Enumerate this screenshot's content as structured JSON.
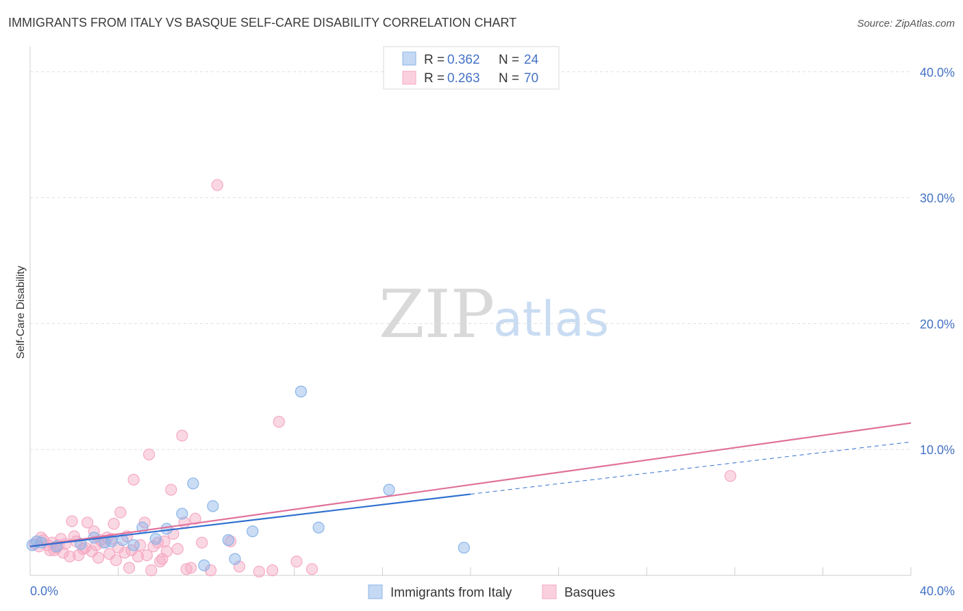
{
  "chart_data": {
    "type": "scatter",
    "title": "IMMIGRANTS FROM ITALY VS BASQUE SELF-CARE DISABILITY CORRELATION CHART",
    "source": "Source: ZipAtlas.com",
    "ylabel": "Self-Care Disability",
    "xlim": [
      0,
      40
    ],
    "ylim": [
      0,
      42
    ],
    "y_ticks": [
      {
        "value": 10,
        "label": "10.0%"
      },
      {
        "value": 20,
        "label": "20.0%"
      },
      {
        "value": 30,
        "label": "30.0%"
      },
      {
        "value": 40,
        "label": "40.0%"
      }
    ],
    "x_tick_labels": {
      "left": "0.0%",
      "right": "40.0%"
    },
    "watermark": {
      "zip": "ZIP",
      "atlas": "atlas"
    },
    "series": [
      {
        "name": "Immigrants from Italy",
        "color": "#8ab4e8",
        "line_color": "#2f6fd0",
        "R": "0.362",
        "N": "24",
        "trend": {
          "x0": 0,
          "y0": 2.3,
          "x1": 40,
          "y1": 10.6,
          "solid_until": 20
        },
        "points": [
          [
            0.1,
            2.4
          ],
          [
            0.5,
            2.6
          ],
          [
            1.2,
            2.3
          ],
          [
            2.3,
            2.5
          ],
          [
            2.9,
            3.0
          ],
          [
            3.4,
            2.6
          ],
          [
            3.7,
            2.7
          ],
          [
            4.2,
            2.8
          ],
          [
            4.7,
            2.4
          ],
          [
            5.1,
            3.8
          ],
          [
            5.7,
            2.9
          ],
          [
            6.2,
            3.7
          ],
          [
            6.9,
            4.9
          ],
          [
            7.4,
            7.3
          ],
          [
            7.9,
            0.8
          ],
          [
            8.3,
            5.5
          ],
          [
            9.0,
            2.8
          ],
          [
            9.3,
            1.3
          ],
          [
            10.1,
            3.5
          ],
          [
            12.3,
            14.6
          ],
          [
            13.1,
            3.8
          ],
          [
            16.3,
            6.8
          ],
          [
            19.7,
            2.2
          ],
          [
            0.3,
            2.7
          ]
        ]
      },
      {
        "name": "Basques",
        "color": "#f5a8c2",
        "line_color": "#e0709a",
        "R": "0.263",
        "N": "70",
        "trend": {
          "x0": 0,
          "y0": 2.3,
          "x1": 40,
          "y1": 12.1
        },
        "points": [
          [
            0.2,
            2.5
          ],
          [
            0.4,
            2.3
          ],
          [
            0.6,
            2.8
          ],
          [
            0.8,
            2.4
          ],
          [
            1.0,
            2.6
          ],
          [
            1.2,
            2.2
          ],
          [
            1.4,
            2.9
          ],
          [
            1.1,
            2.0
          ],
          [
            1.6,
            2.5
          ],
          [
            1.8,
            1.5
          ],
          [
            1.9,
            4.3
          ],
          [
            2.1,
            2.7
          ],
          [
            2.2,
            1.6
          ],
          [
            2.4,
            2.1
          ],
          [
            2.6,
            4.2
          ],
          [
            2.8,
            1.9
          ],
          [
            2.9,
            3.5
          ],
          [
            3.0,
            2.4
          ],
          [
            3.1,
            1.4
          ],
          [
            3.3,
            2.6
          ],
          [
            3.5,
            3.0
          ],
          [
            3.6,
            1.7
          ],
          [
            3.7,
            2.9
          ],
          [
            3.8,
            4.1
          ],
          [
            3.9,
            1.2
          ],
          [
            4.0,
            2.2
          ],
          [
            4.1,
            5.0
          ],
          [
            4.3,
            1.8
          ],
          [
            4.4,
            3.1
          ],
          [
            4.6,
            2.0
          ],
          [
            4.7,
            7.6
          ],
          [
            4.9,
            1.5
          ],
          [
            5.0,
            2.4
          ],
          [
            5.2,
            4.2
          ],
          [
            5.3,
            1.6
          ],
          [
            5.4,
            9.6
          ],
          [
            5.6,
            2.3
          ],
          [
            5.8,
            2.6
          ],
          [
            5.9,
            1.1
          ],
          [
            6.1,
            2.7
          ],
          [
            6.2,
            1.9
          ],
          [
            6.4,
            6.8
          ],
          [
            6.5,
            3.3
          ],
          [
            6.7,
            2.1
          ],
          [
            6.9,
            11.1
          ],
          [
            7.0,
            4.2
          ],
          [
            7.1,
            0.5
          ],
          [
            7.3,
            0.6
          ],
          [
            7.5,
            4.5
          ],
          [
            7.8,
            2.6
          ],
          [
            8.2,
            0.4
          ],
          [
            8.5,
            31.0
          ],
          [
            9.1,
            2.7
          ],
          [
            9.5,
            0.7
          ],
          [
            10.4,
            0.3
          ],
          [
            11.0,
            0.4
          ],
          [
            11.3,
            12.2
          ],
          [
            12.1,
            1.1
          ],
          [
            12.8,
            0.5
          ],
          [
            0.9,
            2.0
          ],
          [
            1.5,
            1.8
          ],
          [
            2.5,
            2.2
          ],
          [
            3.2,
            2.8
          ],
          [
            4.5,
            0.6
          ],
          [
            5.5,
            0.4
          ],
          [
            6.0,
            1.3
          ],
          [
            31.8,
            7.9
          ],
          [
            0.5,
            3.0
          ],
          [
            2.0,
            3.1
          ],
          [
            1.3,
            2.4
          ]
        ]
      }
    ]
  }
}
